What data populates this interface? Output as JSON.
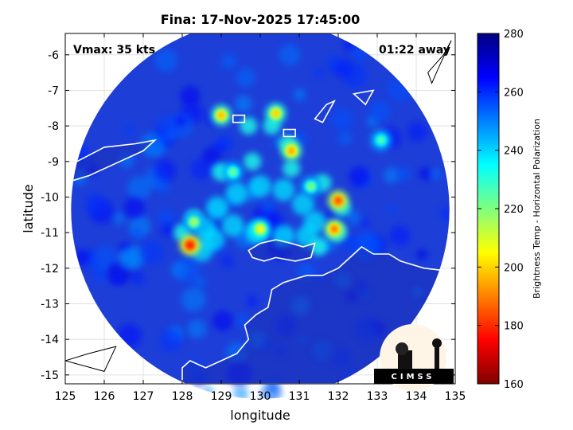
{
  "chart_data": {
    "type": "heatmap",
    "title": "Fina: 17-Nov-2025 17:45:00",
    "xlabel": "longitude",
    "ylabel": "latitude",
    "xlim": [
      125,
      135
    ],
    "ylim": [
      -15.25,
      -5.4
    ],
    "xticks": [
      "125",
      "126",
      "127",
      "128",
      "129",
      "130",
      "131",
      "132",
      "133",
      "134",
      "135"
    ],
    "yticks": [
      "-6",
      "-7",
      "-8",
      "-9",
      "-10",
      "-11",
      "-12",
      "-13",
      "-14",
      "-15"
    ],
    "grid": true,
    "annotations": {
      "vmax": "Vmax: 35 kts",
      "away": "01:22 away"
    },
    "colorbar": {
      "label": "Brightness Temp - Horizontal Polarization",
      "range": [
        160,
        280
      ],
      "ticks": [
        "280",
        "260",
        "240",
        "220",
        "200",
        "180",
        "160"
      ],
      "colormap": "jet"
    },
    "swath": {
      "center_lon": 130.0,
      "center_lat": -10.35,
      "radius_deg": 4.85
    },
    "cold_cores": [
      {
        "lon": 128.2,
        "lat": -11.35,
        "value": 178
      },
      {
        "lon": 132.0,
        "lat": -10.1,
        "value": 185
      },
      {
        "lon": 131.9,
        "lat": -10.9,
        "value": 190
      },
      {
        "lon": 129.0,
        "lat": -7.7,
        "value": 198
      },
      {
        "lon": 130.4,
        "lat": -7.65,
        "value": 200
      },
      {
        "lon": 130.8,
        "lat": -8.7,
        "value": 195
      },
      {
        "lon": 130.0,
        "lat": -10.9,
        "value": 205
      },
      {
        "lon": 129.3,
        "lat": -9.3,
        "value": 222
      },
      {
        "lon": 128.3,
        "lat": -10.7,
        "value": 215
      },
      {
        "lon": 131.3,
        "lat": -9.7,
        "value": 220
      },
      {
        "lon": 133.1,
        "lat": -8.4,
        "value": 225
      }
    ]
  },
  "logo": {
    "text": "CIMSS"
  }
}
